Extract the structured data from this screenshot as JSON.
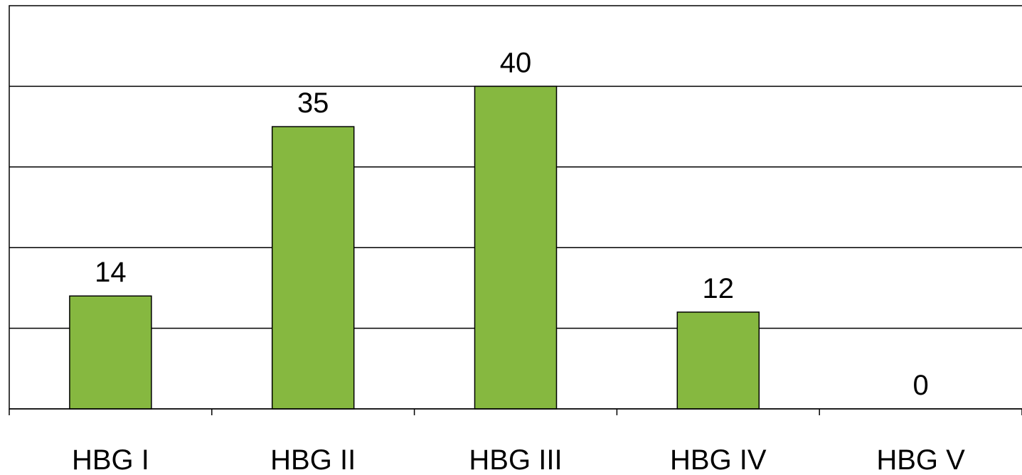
{
  "chart_data": {
    "type": "bar",
    "categories": [
      "HBG I",
      "HBG II",
      "HBG III",
      "HBG IV",
      "HBG V"
    ],
    "values": [
      14,
      35,
      40,
      12,
      0
    ],
    "data_labels": [
      "14",
      "35",
      "40",
      "12",
      "0"
    ],
    "ylim": [
      0,
      50
    ],
    "gridlines": true,
    "y_tick_labels_shown": false,
    "legend": "none",
    "bar_color": "#86b840"
  }
}
